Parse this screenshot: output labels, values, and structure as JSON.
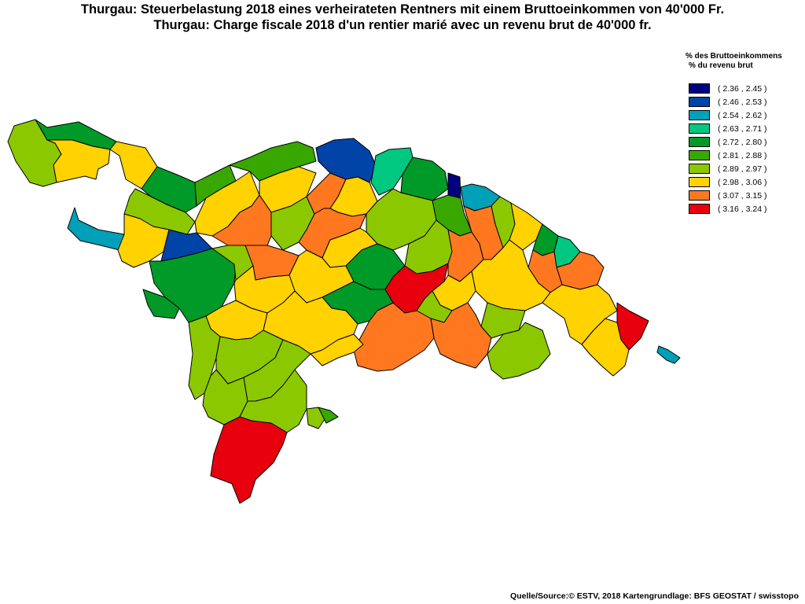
{
  "title_de": "Thurgau: Steuerbelastung 2018 eines verheirateten Rentners mit einem Bruttoeinkommen von 40'000 Fr.",
  "title_fr": "Thurgau: Charge fiscale 2018 d'un rentier marié avec un revenu brut de 40'000 fr.",
  "legend": {
    "heading_de": "% des Bruttoeinkommens",
    "heading_fr": "% du revenu brut",
    "classes": [
      {
        "range": "( 2.36 , 2.45 )",
        "color": "#000080"
      },
      {
        "range": "( 2.46 , 2.53 )",
        "color": "#0044a8"
      },
      {
        "range": "( 2.54 , 2.62 )",
        "color": "#00a0b8"
      },
      {
        "range": "( 2.63 , 2.71 )",
        "color": "#00c880"
      },
      {
        "range": "( 2.72 , 2.80 )",
        "color": "#009a28"
      },
      {
        "range": "( 2.81 , 2.88 )",
        "color": "#38a800"
      },
      {
        "range": "( 2.89 , 2.97 )",
        "color": "#8cc800"
      },
      {
        "range": "( 2.98 , 3.06 )",
        "color": "#ffd200"
      },
      {
        "range": "( 3.07 , 3.15 )",
        "color": "#ff7820"
      },
      {
        "range": "( 3.16 , 3.24 )",
        "color": "#e8000e"
      }
    ]
  },
  "source": "Quelle/Source:© ESTV, 2018 Kartengrundlage: BFS GEOSTAT / swisstopo"
}
